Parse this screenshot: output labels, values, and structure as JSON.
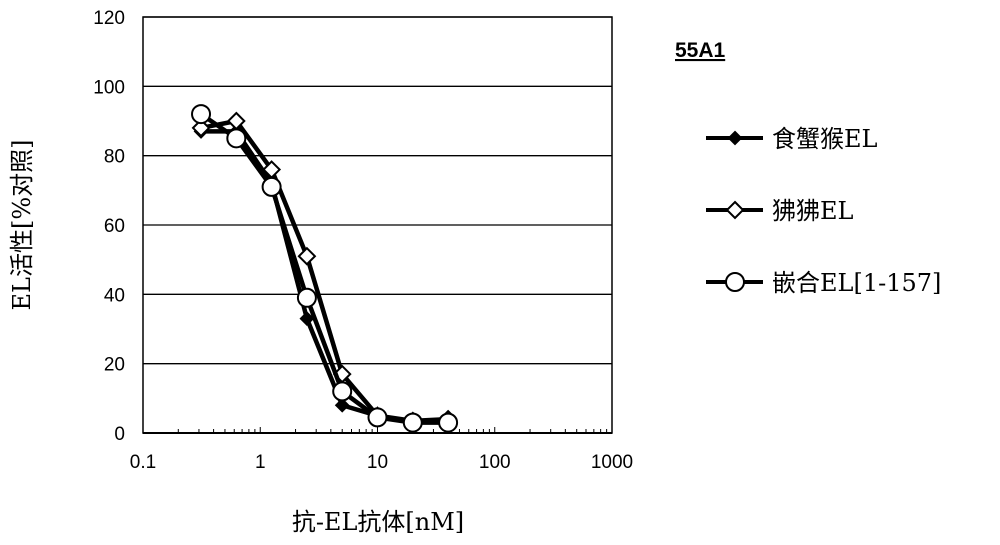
{
  "chart_data": {
    "type": "line",
    "title": "55A1",
    "xlabel": "抗-EL抗体[nM]",
    "ylabel": "EL活性[%对照]",
    "xscale": "log",
    "xlim": [
      0.1,
      1000
    ],
    "ylim": [
      0,
      120
    ],
    "xticks": [
      "0.1",
      "1",
      "10",
      "100",
      "1000"
    ],
    "yticks": [
      "0",
      "20",
      "40",
      "60",
      "80",
      "100",
      "120"
    ],
    "grid": "horizontal",
    "legend_position": "right",
    "x": [
      0.3125,
      0.625,
      1.25,
      2.5,
      5,
      10,
      20,
      40
    ],
    "series": [
      {
        "name": "食蟹猴EL",
        "marker": "filled-diamond",
        "values": [
          87,
          87,
          72,
          33,
          8,
          5,
          3,
          4
        ]
      },
      {
        "name": "狒狒EL",
        "marker": "open-diamond",
        "values": [
          88,
          90,
          76,
          51,
          17,
          5,
          3.5,
          4
        ]
      },
      {
        "name": "嵌合EL[1-157]",
        "marker": "open-circle",
        "values": [
          92,
          85,
          71,
          39,
          12,
          4.5,
          3,
          3
        ]
      }
    ],
    "colors": {
      "line": "#000000",
      "grid": "#000000",
      "background": "#ffffff"
    }
  }
}
